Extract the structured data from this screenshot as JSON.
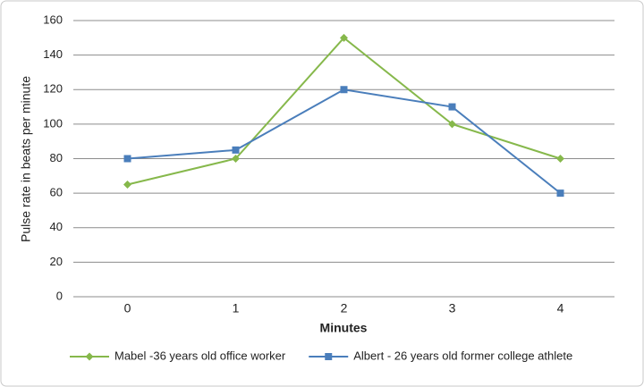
{
  "chart_data": {
    "type": "line",
    "x_label": "Minutes",
    "y_label": "Pulse rate in beats per minute",
    "categories": [
      "0",
      "1",
      "2",
      "3",
      "4"
    ],
    "series": [
      {
        "name": "Mabel -36 years old office worker",
        "color": "#86b84b",
        "marker": "diamond",
        "values": [
          65,
          80,
          150,
          100,
          80
        ]
      },
      {
        "name": "Albert - 26 years old former college athlete",
        "color": "#4a7ebb",
        "marker": "square",
        "values": [
          80,
          85,
          120,
          110,
          60
        ]
      }
    ],
    "ylim": [
      0,
      160
    ],
    "yticks": [
      0,
      20,
      40,
      60,
      80,
      100,
      120,
      140,
      160
    ],
    "grid": true,
    "legend": "bottom"
  }
}
